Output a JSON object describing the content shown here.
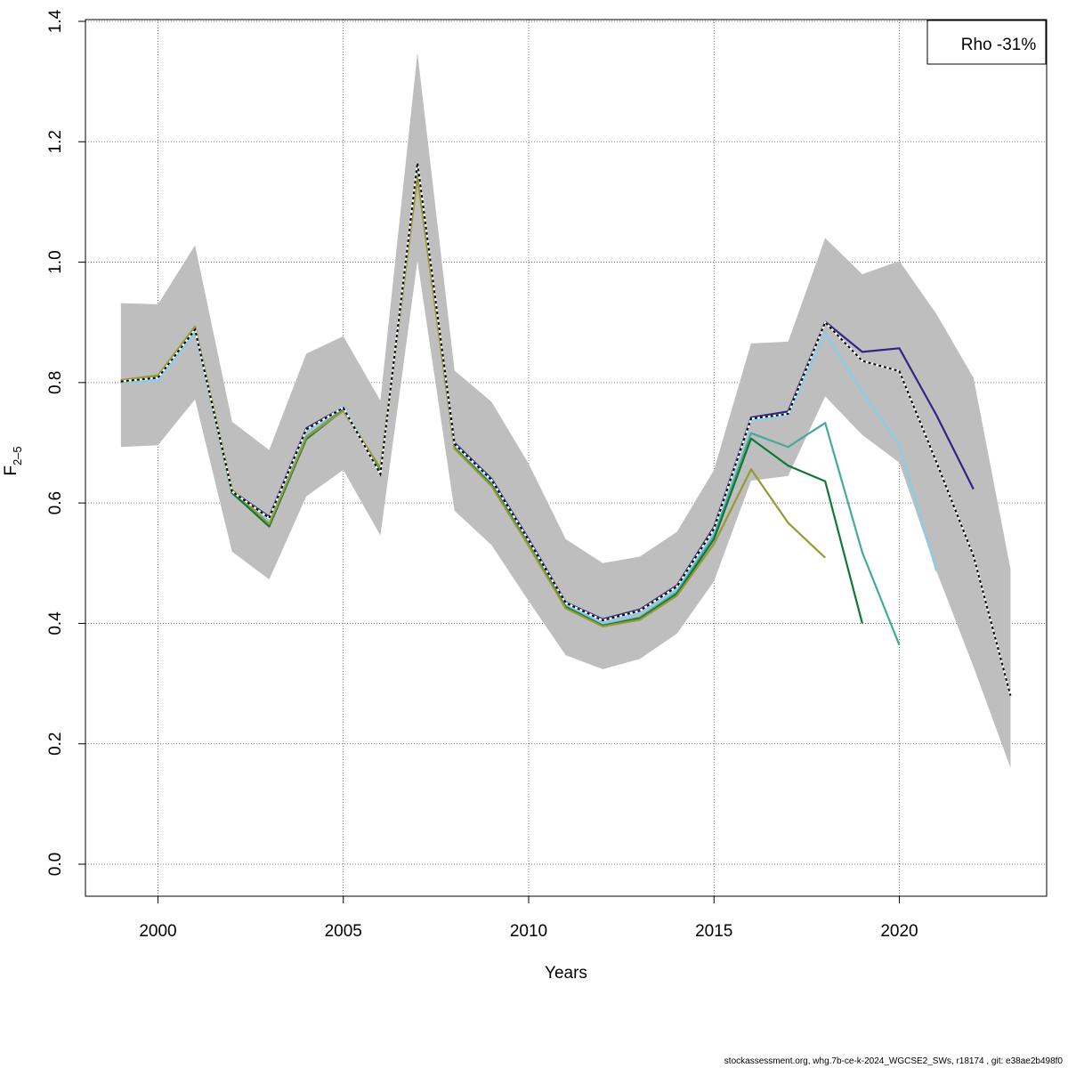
{
  "chart_data": {
    "type": "line",
    "title": "",
    "xlabel": "Years",
    "ylabel_main": "F",
    "ylabel_sub": "2–5",
    "xlim": [
      1998,
      2024
    ],
    "ylim": [
      -0.05,
      1.4
    ],
    "x_ticks": [
      2000,
      2005,
      2010,
      2015,
      2020
    ],
    "x_tick_labels": [
      "2000",
      "2005",
      "2010",
      "2015",
      "2020"
    ],
    "y_ticks": [
      0.0,
      0.2,
      0.4,
      0.6,
      0.8,
      1.0,
      1.2,
      1.4
    ],
    "y_tick_labels": [
      "0.0",
      "0.2",
      "0.4",
      "0.6",
      "0.8",
      "1.0",
      "1.2",
      "1.4"
    ],
    "grid": true,
    "legend": {
      "text": "Rho -31%",
      "position": "top-right"
    },
    "confidence_band": {
      "color": "#bebebe",
      "x": [
        1999,
        2000,
        2001,
        2002,
        2003,
        2004,
        2005,
        2006,
        2007,
        2008,
        2009,
        2010,
        2011,
        2012,
        2013,
        2014,
        2015,
        2016,
        2017,
        2018,
        2019,
        2020,
        2021,
        2022,
        2023
      ],
      "upper": [
        0.932,
        0.93,
        1.028,
        0.735,
        0.688,
        0.848,
        0.877,
        0.77,
        1.348,
        0.82,
        0.768,
        0.665,
        0.54,
        0.5,
        0.511,
        0.552,
        0.655,
        0.865,
        0.868,
        1.04,
        0.98,
        1.002,
        0.914,
        0.808,
        0.49
      ],
      "lower": [
        0.693,
        0.696,
        0.772,
        0.519,
        0.473,
        0.611,
        0.655,
        0.546,
        1.002,
        0.587,
        0.53,
        0.437,
        0.347,
        0.324,
        0.341,
        0.383,
        0.47,
        0.637,
        0.645,
        0.777,
        0.713,
        0.667,
        0.487,
        0.328,
        0.16
      ]
    },
    "series": [
      {
        "color": "#2e2585",
        "dash": false,
        "x": [
          1999,
          2000,
          2001,
          2002,
          2003,
          2004,
          2005,
          2006,
          2007,
          2008,
          2009,
          2010,
          2011,
          2012,
          2013,
          2014,
          2015,
          2016,
          2017,
          2018,
          2019,
          2020,
          2021,
          2022
        ],
        "values": [
          0.803,
          0.808,
          0.889,
          0.62,
          0.577,
          0.724,
          0.759,
          0.65,
          1.16,
          0.7,
          0.64,
          0.54,
          0.435,
          0.407,
          0.423,
          0.463,
          0.56,
          0.742,
          0.752,
          0.901,
          0.851,
          0.857,
          0.746,
          0.623
        ]
      },
      {
        "color": "#87ceeb",
        "dash": false,
        "x": [
          1999,
          2000,
          2001,
          2002,
          2003,
          2004,
          2005,
          2006,
          2007,
          2008,
          2009,
          2010,
          2011,
          2012,
          2013,
          2014,
          2015,
          2016,
          2017,
          2018,
          2019,
          2020,
          2021
        ],
        "values": [
          0.801,
          0.803,
          0.882,
          0.618,
          0.57,
          0.718,
          0.76,
          0.65,
          1.155,
          0.695,
          0.635,
          0.535,
          0.432,
          0.4,
          0.418,
          0.456,
          0.553,
          0.737,
          0.745,
          0.882,
          0.784,
          0.697,
          0.487
        ]
      },
      {
        "color": "#44aa99",
        "dash": false,
        "x": [
          1999,
          2000,
          2001,
          2002,
          2003,
          2004,
          2005,
          2006,
          2007,
          2008,
          2009,
          2010,
          2011,
          2012,
          2013,
          2014,
          2015,
          2016,
          2017,
          2018,
          2019,
          2020
        ],
        "values": [
          0.801,
          0.809,
          0.887,
          0.616,
          0.563,
          0.71,
          0.756,
          0.655,
          1.15,
          0.692,
          0.631,
          0.532,
          0.428,
          0.397,
          0.41,
          0.452,
          0.545,
          0.716,
          0.693,
          0.733,
          0.518,
          0.364
        ]
      },
      {
        "color": "#117733",
        "dash": false,
        "x": [
          1999,
          2000,
          2001,
          2002,
          2003,
          2004,
          2005,
          2006,
          2007,
          2008,
          2009,
          2010,
          2011,
          2012,
          2013,
          2014,
          2015,
          2016,
          2017,
          2018,
          2019
        ],
        "values": [
          0.802,
          0.81,
          0.89,
          0.617,
          0.561,
          0.706,
          0.754,
          0.654,
          1.148,
          0.691,
          0.63,
          0.53,
          0.427,
          0.396,
          0.408,
          0.449,
          0.54,
          0.707,
          0.662,
          0.636,
          0.4
        ]
      },
      {
        "color": "#999933",
        "dash": false,
        "x": [
          1999,
          2000,
          2001,
          2002,
          2003,
          2004,
          2005,
          2006,
          2007,
          2008,
          2009,
          2010,
          2011,
          2012,
          2013,
          2014,
          2015,
          2016,
          2017,
          2018
        ],
        "values": [
          0.804,
          0.812,
          0.893,
          0.622,
          0.565,
          0.709,
          0.753,
          0.658,
          1.142,
          0.69,
          0.628,
          0.529,
          0.425,
          0.395,
          0.406,
          0.446,
          0.532,
          0.656,
          0.567,
          0.509
        ]
      },
      {
        "color": "#000000",
        "dash": true,
        "x": [
          1999,
          2000,
          2001,
          2002,
          2003,
          2004,
          2005,
          2006,
          2007,
          2008,
          2009,
          2010,
          2011,
          2012,
          2013,
          2014,
          2015,
          2016,
          2017,
          2018,
          2019,
          2020,
          2021,
          2022,
          2023
        ],
        "values": [
          0.802,
          0.808,
          0.888,
          0.619,
          0.575,
          0.722,
          0.758,
          0.648,
          1.165,
          0.698,
          0.638,
          0.538,
          0.434,
          0.405,
          0.421,
          0.461,
          0.557,
          0.74,
          0.748,
          0.9,
          0.836,
          0.819,
          0.668,
          0.512,
          0.28
        ]
      }
    ]
  },
  "footer": "stockassessment.org, whg.7b-ce-k-2024_WGCSE2_SWs, r18174 , git: e38ae2b498f0"
}
